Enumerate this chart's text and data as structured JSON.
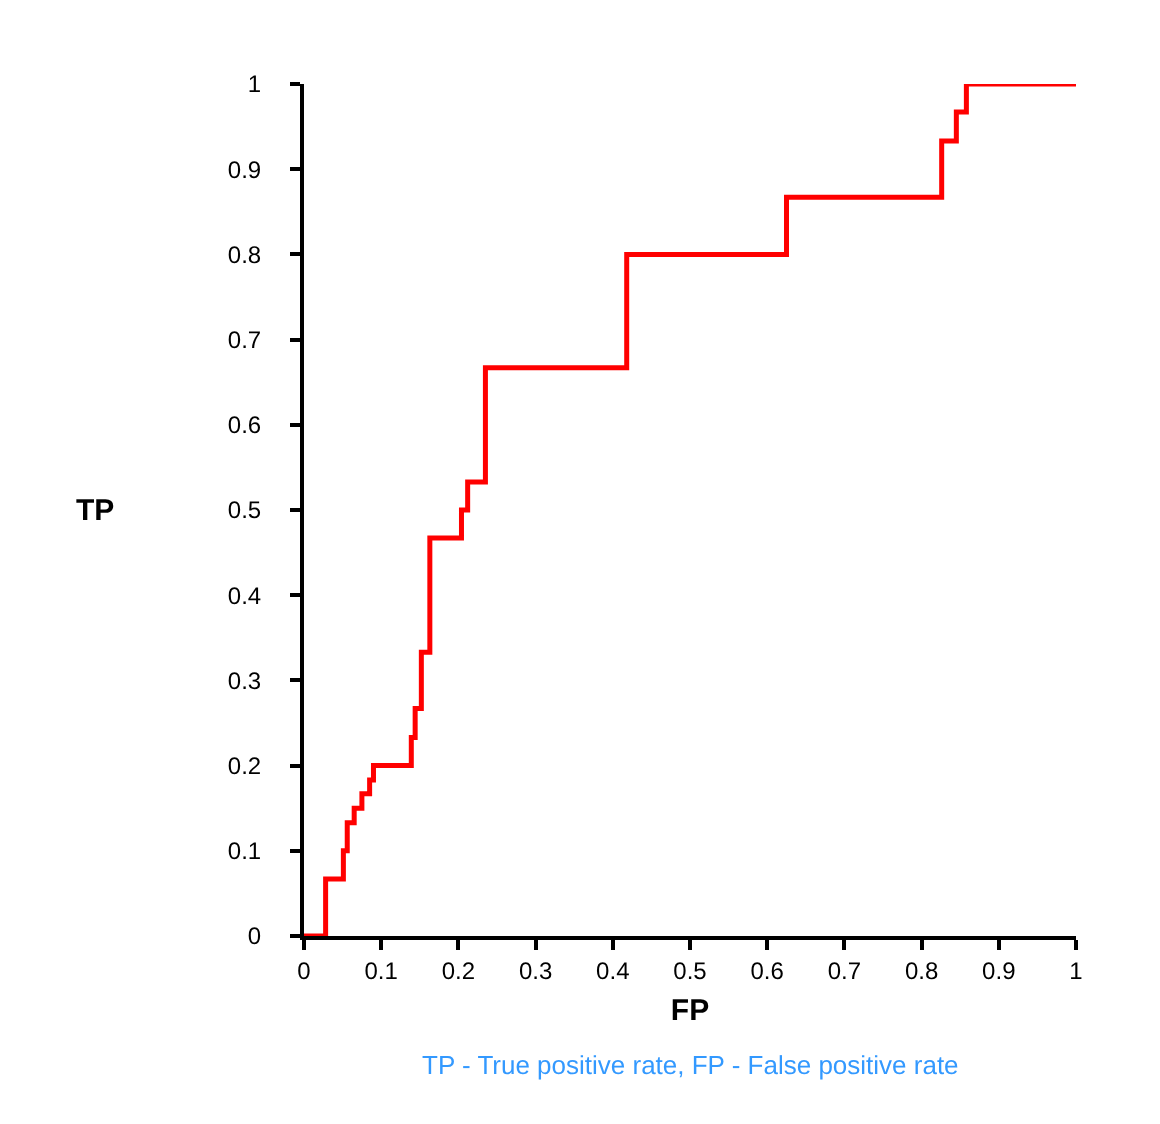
{
  "chart_data": {
    "type": "step",
    "xlabel": "FP",
    "ylabel": "TP",
    "x": [
      0,
      0.028,
      0.051,
      0.056,
      0.065,
      0.075,
      0.085,
      0.09,
      0.139,
      0.144,
      0.152,
      0.163,
      0.204,
      0.212,
      0.235,
      0.418,
      0.625,
      0.826,
      0.845,
      0.858,
      1
    ],
    "series": [
      {
        "color": "#ff0000",
        "values": [
          0,
          0.067,
          0.1,
          0.133,
          0.15,
          0.167,
          0.183,
          0.2,
          0.233,
          0.267,
          0.333,
          0.467,
          0.5,
          0.533,
          0.667,
          0.8,
          0.867,
          0.933,
          0.967,
          1,
          1
        ]
      }
    ],
    "xlim": [
      0,
      1
    ],
    "ylim": [
      0,
      1
    ],
    "xticks": [
      0,
      0.1,
      0.2,
      0.3,
      0.4,
      0.5,
      0.6,
      0.7,
      0.8,
      0.9,
      1
    ],
    "yticks": [
      0,
      0.1,
      0.2,
      0.3,
      0.4,
      0.5,
      0.6,
      0.7,
      0.8,
      0.9,
      1
    ],
    "marker": "none",
    "line_style": "solid",
    "annotations": [
      "TP - True positive rate, FP - False positive rate"
    ]
  }
}
